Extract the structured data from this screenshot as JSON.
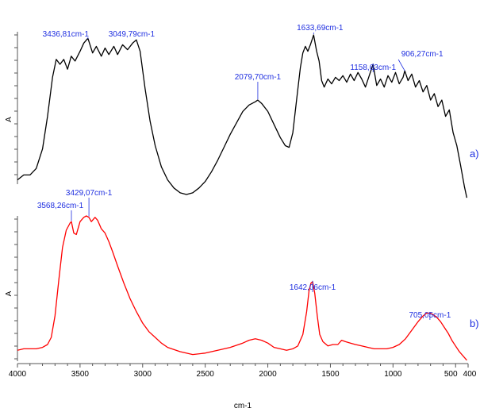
{
  "chart_data": {
    "type": "line",
    "xlabel": "cm-1",
    "xlim": [
      4000,
      400
    ],
    "x_ticks": [
      "4000",
      "3500",
      "3000",
      "2500",
      "2000",
      "1500",
      "1000",
      "500",
      "400"
    ],
    "panels": [
      {
        "label": "a)",
        "ylabel": "A",
        "color": "#000000",
        "points": [
          [
            4000,
            0.09
          ],
          [
            3950,
            0.12
          ],
          [
            3900,
            0.12
          ],
          [
            3850,
            0.16
          ],
          [
            3800,
            0.28
          ],
          [
            3760,
            0.48
          ],
          [
            3720,
            0.72
          ],
          [
            3690,
            0.83
          ],
          [
            3660,
            0.8
          ],
          [
            3630,
            0.83
          ],
          [
            3600,
            0.77
          ],
          [
            3570,
            0.85
          ],
          [
            3540,
            0.82
          ],
          [
            3500,
            0.88
          ],
          [
            3470,
            0.93
          ],
          [
            3437,
            0.96
          ],
          [
            3400,
            0.87
          ],
          [
            3370,
            0.91
          ],
          [
            3330,
            0.85
          ],
          [
            3300,
            0.9
          ],
          [
            3270,
            0.86
          ],
          [
            3230,
            0.91
          ],
          [
            3200,
            0.86
          ],
          [
            3160,
            0.92
          ],
          [
            3120,
            0.89
          ],
          [
            3080,
            0.93
          ],
          [
            3050,
            0.95
          ],
          [
            3020,
            0.88
          ],
          [
            2980,
            0.65
          ],
          [
            2940,
            0.45
          ],
          [
            2900,
            0.3
          ],
          [
            2850,
            0.17
          ],
          [
            2800,
            0.09
          ],
          [
            2750,
            0.04
          ],
          [
            2700,
            0.01
          ],
          [
            2650,
            0.0
          ],
          [
            2600,
            0.01
          ],
          [
            2550,
            0.04
          ],
          [
            2500,
            0.08
          ],
          [
            2450,
            0.14
          ],
          [
            2400,
            0.21
          ],
          [
            2350,
            0.29
          ],
          [
            2300,
            0.37
          ],
          [
            2250,
            0.44
          ],
          [
            2200,
            0.51
          ],
          [
            2150,
            0.55
          ],
          [
            2100,
            0.57
          ],
          [
            2080,
            0.58
          ],
          [
            2050,
            0.56
          ],
          [
            2000,
            0.51
          ],
          [
            1950,
            0.43
          ],
          [
            1900,
            0.35
          ],
          [
            1860,
            0.3
          ],
          [
            1830,
            0.29
          ],
          [
            1800,
            0.38
          ],
          [
            1770,
            0.58
          ],
          [
            1740,
            0.78
          ],
          [
            1720,
            0.87
          ],
          [
            1700,
            0.91
          ],
          [
            1680,
            0.88
          ],
          [
            1660,
            0.92
          ],
          [
            1634,
            0.98
          ],
          [
            1610,
            0.88
          ],
          [
            1590,
            0.82
          ],
          [
            1570,
            0.7
          ],
          [
            1550,
            0.66
          ],
          [
            1520,
            0.71
          ],
          [
            1490,
            0.68
          ],
          [
            1460,
            0.72
          ],
          [
            1430,
            0.7
          ],
          [
            1400,
            0.73
          ],
          [
            1370,
            0.69
          ],
          [
            1340,
            0.74
          ],
          [
            1310,
            0.7
          ],
          [
            1280,
            0.75
          ],
          [
            1250,
            0.71
          ],
          [
            1220,
            0.66
          ],
          [
            1190,
            0.73
          ],
          [
            1159,
            0.8
          ],
          [
            1130,
            0.67
          ],
          [
            1100,
            0.71
          ],
          [
            1070,
            0.66
          ],
          [
            1040,
            0.73
          ],
          [
            1010,
            0.69
          ],
          [
            980,
            0.75
          ],
          [
            950,
            0.68
          ],
          [
            920,
            0.72
          ],
          [
            906,
            0.76
          ],
          [
            880,
            0.7
          ],
          [
            850,
            0.74
          ],
          [
            820,
            0.66
          ],
          [
            790,
            0.7
          ],
          [
            760,
            0.63
          ],
          [
            730,
            0.67
          ],
          [
            700,
            0.58
          ],
          [
            670,
            0.62
          ],
          [
            640,
            0.54
          ],
          [
            610,
            0.58
          ],
          [
            580,
            0.48
          ],
          [
            550,
            0.52
          ],
          [
            520,
            0.38
          ],
          [
            490,
            0.3
          ],
          [
            460,
            0.18
          ],
          [
            430,
            0.05
          ],
          [
            410,
            -0.02
          ]
        ],
        "annotations": [
          {
            "x": 3437,
            "y": 0.96,
            "text": "3436,81cm-1"
          },
          {
            "x": 3050,
            "y": 0.95,
            "text": "3049,79cm-1"
          },
          {
            "x": 2080,
            "y": 0.58,
            "text": "2079,70cm-1"
          },
          {
            "x": 1634,
            "y": 0.98,
            "text": "1633,69cm-1"
          },
          {
            "x": 1159,
            "y": 0.8,
            "text": "1158,63cm-1"
          },
          {
            "x": 906,
            "y": 0.76,
            "text": "906,27cm-1"
          }
        ]
      },
      {
        "label": "b)",
        "ylabel": "A",
        "color": "#ff0000",
        "points": [
          [
            4000,
            0.06
          ],
          [
            3950,
            0.07
          ],
          [
            3900,
            0.07
          ],
          [
            3850,
            0.07
          ],
          [
            3800,
            0.08
          ],
          [
            3760,
            0.1
          ],
          [
            3730,
            0.15
          ],
          [
            3700,
            0.3
          ],
          [
            3670,
            0.55
          ],
          [
            3640,
            0.78
          ],
          [
            3610,
            0.9
          ],
          [
            3580,
            0.95
          ],
          [
            3569,
            0.96
          ],
          [
            3550,
            0.88
          ],
          [
            3530,
            0.87
          ],
          [
            3500,
            0.96
          ],
          [
            3470,
            0.99
          ],
          [
            3450,
            1.0
          ],
          [
            3429,
            0.99
          ],
          [
            3410,
            0.96
          ],
          [
            3380,
            0.99
          ],
          [
            3360,
            0.97
          ],
          [
            3330,
            0.91
          ],
          [
            3300,
            0.88
          ],
          [
            3270,
            0.82
          ],
          [
            3240,
            0.75
          ],
          [
            3200,
            0.65
          ],
          [
            3150,
            0.53
          ],
          [
            3100,
            0.42
          ],
          [
            3050,
            0.33
          ],
          [
            3000,
            0.25
          ],
          [
            2950,
            0.19
          ],
          [
            2900,
            0.15
          ],
          [
            2850,
            0.11
          ],
          [
            2800,
            0.08
          ],
          [
            2700,
            0.05
          ],
          [
            2600,
            0.03
          ],
          [
            2500,
            0.04
          ],
          [
            2400,
            0.06
          ],
          [
            2300,
            0.08
          ],
          [
            2200,
            0.11
          ],
          [
            2150,
            0.13
          ],
          [
            2100,
            0.14
          ],
          [
            2050,
            0.13
          ],
          [
            2000,
            0.11
          ],
          [
            1950,
            0.08
          ],
          [
            1900,
            0.07
          ],
          [
            1850,
            0.06
          ],
          [
            1800,
            0.07
          ],
          [
            1760,
            0.09
          ],
          [
            1720,
            0.17
          ],
          [
            1690,
            0.33
          ],
          [
            1670,
            0.48
          ],
          [
            1655,
            0.53
          ],
          [
            1642,
            0.54
          ],
          [
            1625,
            0.46
          ],
          [
            1605,
            0.3
          ],
          [
            1585,
            0.17
          ],
          [
            1560,
            0.12
          ],
          [
            1520,
            0.09
          ],
          [
            1480,
            0.1
          ],
          [
            1440,
            0.1
          ],
          [
            1410,
            0.13
          ],
          [
            1380,
            0.12
          ],
          [
            1340,
            0.11
          ],
          [
            1300,
            0.1
          ],
          [
            1250,
            0.09
          ],
          [
            1200,
            0.08
          ],
          [
            1150,
            0.07
          ],
          [
            1100,
            0.07
          ],
          [
            1050,
            0.07
          ],
          [
            1000,
            0.08
          ],
          [
            950,
            0.1
          ],
          [
            900,
            0.14
          ],
          [
            850,
            0.2
          ],
          [
            800,
            0.26
          ],
          [
            760,
            0.3
          ],
          [
            730,
            0.32
          ],
          [
            705,
            0.32
          ],
          [
            680,
            0.31
          ],
          [
            650,
            0.29
          ],
          [
            620,
            0.26
          ],
          [
            590,
            0.22
          ],
          [
            560,
            0.18
          ],
          [
            530,
            0.13
          ],
          [
            500,
            0.09
          ],
          [
            470,
            0.05
          ],
          [
            440,
            0.02
          ],
          [
            410,
            -0.01
          ]
        ],
        "annotations": [
          {
            "x": 3569,
            "y": 0.96,
            "text": "3568,26cm-1"
          },
          {
            "x": 3429,
            "y": 0.99,
            "text": "3429,07cm-1"
          },
          {
            "x": 1642,
            "y": 0.54,
            "text": "1642,06cm-1"
          },
          {
            "x": 705,
            "y": 0.32,
            "text": "705,05cm-1"
          }
        ]
      }
    ]
  }
}
